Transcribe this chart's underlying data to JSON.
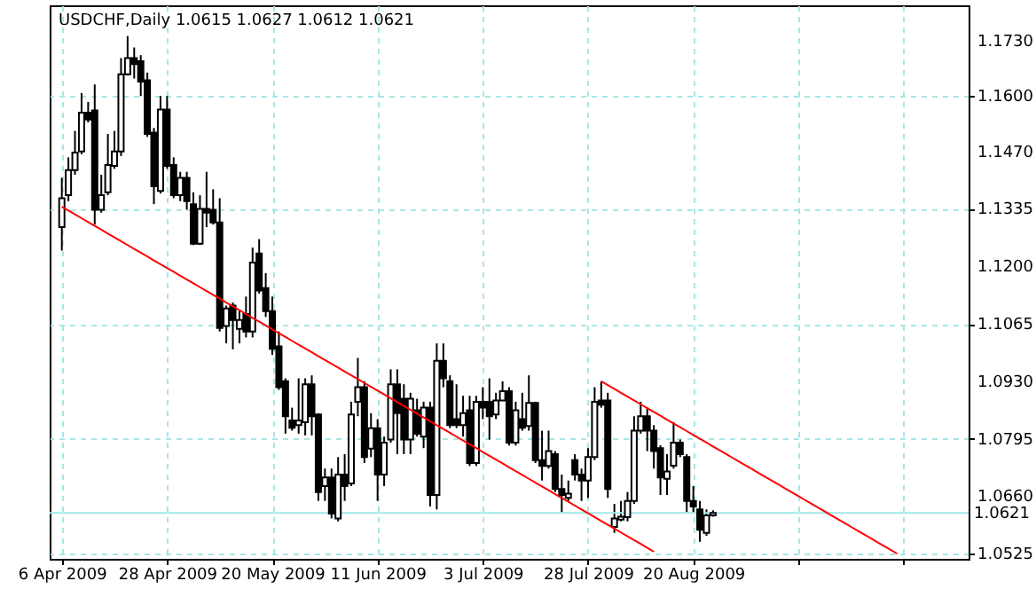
{
  "chart_data": {
    "type": "candlestick",
    "title": "USDCHF,Daily 1.0615 1.0627 1.0612 1.0621",
    "categories": [
      "6 Apr 2009",
      null,
      null,
      null,
      null,
      null,
      null,
      null,
      null,
      null,
      null,
      null,
      null,
      null,
      null,
      null,
      "28 Apr 2009",
      null,
      null,
      null,
      null,
      null,
      null,
      null,
      null,
      null,
      null,
      null,
      null,
      null,
      null,
      null,
      "20 May 2009",
      null,
      null,
      null,
      null,
      null,
      null,
      null,
      null,
      null,
      null,
      null,
      null,
      null,
      null,
      null,
      "11 Jun 2009",
      null,
      null,
      null,
      null,
      null,
      null,
      null,
      null,
      null,
      null,
      null,
      null,
      null,
      null,
      null,
      "3 Jul 2009",
      null,
      null,
      null,
      null,
      null,
      null,
      null,
      null,
      null,
      null,
      null,
      null,
      null,
      null,
      null,
      "28 Jul 2009",
      null,
      null,
      null,
      null,
      null,
      null,
      null,
      null,
      null,
      null,
      null,
      null,
      null,
      null,
      null,
      "20 Aug 2009",
      null,
      null,
      null,
      null,
      null,
      null,
      null,
      null,
      null,
      null,
      null,
      null,
      null,
      null,
      null,
      null,
      null,
      null,
      null,
      null,
      null,
      null,
      null,
      null,
      null,
      null,
      null,
      null,
      null,
      null,
      null,
      null,
      null,
      null,
      null,
      null,
      null,
      null,
      null,
      null
    ],
    "ohlc": [
      [
        1.1292,
        1.1408,
        1.1237,
        1.136
      ],
      [
        1.1367,
        1.1456,
        1.1353,
        1.1426
      ],
      [
        1.1426,
        1.1518,
        1.1415,
        1.1467
      ],
      [
        1.147,
        1.1607,
        1.1463,
        1.1561
      ],
      [
        1.1561,
        1.1586,
        1.1538,
        1.1545
      ],
      [
        1.1566,
        1.1627,
        1.1298,
        1.1333
      ],
      [
        1.1333,
        1.1415,
        1.1326,
        1.1367
      ],
      [
        1.1374,
        1.1511,
        1.1367,
        1.1438
      ],
      [
        1.1436,
        1.1518,
        1.1429,
        1.147
      ],
      [
        1.147,
        1.1689,
        1.1459,
        1.1651
      ],
      [
        1.1651,
        1.1741,
        1.1648,
        1.1689
      ],
      [
        1.1689,
        1.1714,
        1.1641,
        1.1675
      ],
      [
        1.1682,
        1.1696,
        1.16,
        1.1634
      ],
      [
        1.1637,
        1.1655,
        1.1504,
        1.1511
      ],
      [
        1.1514,
        1.1525,
        1.1346,
        1.1388
      ],
      [
        1.1377,
        1.16,
        1.1371,
        1.1568
      ],
      [
        1.1568,
        1.16,
        1.1429,
        1.1436
      ],
      [
        1.1438,
        1.1456,
        1.136,
        1.1367
      ],
      [
        1.1367,
        1.1422,
        1.1353,
        1.1408
      ],
      [
        1.1408,
        1.1422,
        1.1333,
        1.1353
      ],
      [
        1.1346,
        1.1374,
        1.125,
        1.1253
      ],
      [
        1.1253,
        1.1367,
        1.125,
        1.1335
      ],
      [
        1.1335,
        1.1422,
        1.1292,
        1.1326
      ],
      [
        1.1333,
        1.1381,
        1.1298,
        1.1303
      ],
      [
        1.1303,
        1.136,
        1.1047,
        1.1055
      ],
      [
        1.106,
        1.1108,
        1.1019,
        1.1101
      ],
      [
        1.1108,
        1.1115,
        1.1005,
        1.1074
      ],
      [
        1.1053,
        1.1095,
        1.1019,
        1.1074
      ],
      [
        1.1088,
        1.1129,
        1.1033,
        1.1047
      ],
      [
        1.1047,
        1.1244,
        1.1033,
        1.1209
      ],
      [
        1.123,
        1.1264,
        1.1136,
        1.1143
      ],
      [
        1.1149,
        1.1184,
        1.1081,
        1.1095
      ],
      [
        1.1095,
        1.1129,
        1.0992,
        1.1006
      ],
      [
        1.1012,
        1.1047,
        1.091,
        1.0916
      ],
      [
        1.093,
        1.0937,
        1.0807,
        1.0848
      ],
      [
        1.0838,
        1.0868,
        1.0814,
        1.0821
      ],
      [
        1.0827,
        1.0937,
        1.0807,
        1.0838
      ],
      [
        1.0834,
        1.0937,
        1.0803,
        1.0923
      ],
      [
        1.0923,
        1.0944,
        1.0803,
        1.0848
      ],
      [
        1.0852,
        1.0855,
        1.0649,
        1.067
      ],
      [
        1.0684,
        1.0725,
        1.0649,
        1.0704
      ],
      [
        1.0704,
        1.0725,
        1.0608,
        1.0619
      ],
      [
        1.0608,
        1.0752,
        1.0601,
        1.0711
      ],
      [
        1.0711,
        1.0759,
        1.0649,
        1.0684
      ],
      [
        1.069,
        1.0882,
        1.0684,
        1.0852
      ],
      [
        1.0882,
        1.0985,
        1.0848,
        1.0916
      ],
      [
        1.0916,
        1.093,
        1.0738,
        1.0752
      ],
      [
        1.0772,
        1.0855,
        1.0752,
        1.082
      ],
      [
        1.082,
        1.0841,
        1.0649,
        1.0711
      ],
      [
        1.0711,
        1.08,
        1.0684,
        1.0786
      ],
      [
        1.0793,
        1.0958,
        1.0786,
        1.0923
      ],
      [
        1.0923,
        1.0958,
        1.0759,
        1.0855
      ],
      [
        1.0889,
        1.0923,
        1.0759,
        1.0793
      ],
      [
        1.0793,
        1.0903,
        1.0759,
        1.0889
      ],
      [
        1.0862,
        1.0889,
        1.08,
        1.0807
      ],
      [
        1.08,
        1.0882,
        1.0773,
        1.0868
      ],
      [
        1.0868,
        1.0882,
        1.0636,
        1.0663
      ],
      [
        1.0663,
        1.1019,
        1.0629,
        1.0978
      ],
      [
        1.0978,
        1.1019,
        1.0916,
        1.0937
      ],
      [
        1.093,
        1.0944,
        1.082,
        1.0827
      ],
      [
        1.0841,
        1.0923,
        1.082,
        1.0827
      ],
      [
        1.0827,
        1.0896,
        1.08,
        1.0855
      ],
      [
        1.0862,
        1.0896,
        1.0731,
        1.0738
      ],
      [
        1.0738,
        1.0896,
        1.0731,
        1.0882
      ],
      [
        1.0882,
        1.0916,
        1.0841,
        1.0868
      ],
      [
        1.0882,
        1.0937,
        1.0793,
        1.0848
      ],
      [
        1.0852,
        1.0903,
        1.0841,
        1.0885
      ],
      [
        1.0885,
        1.093,
        1.0885,
        1.0907
      ],
      [
        1.0907,
        1.0916,
        1.0779,
        1.0786
      ],
      [
        1.0786,
        1.0882,
        1.0779,
        1.0862
      ],
      [
        1.0841,
        1.0903,
        1.0814,
        1.0821
      ],
      [
        1.0825,
        1.0944,
        1.0814,
        1.0879
      ],
      [
        1.0879,
        1.0882,
        1.0738,
        1.0745
      ],
      [
        1.0745,
        1.0814,
        1.0697,
        1.0731
      ],
      [
        1.0731,
        1.0814,
        1.0725,
        1.0766
      ],
      [
        1.0759,
        1.0766,
        1.067,
        1.0677
      ],
      [
        1.0677,
        1.0711,
        1.0622,
        1.0663
      ],
      [
        1.0656,
        1.0697,
        1.0649,
        1.0666
      ],
      [
        1.0745,
        1.0759,
        1.0697,
        1.0711
      ],
      [
        1.0711,
        1.0725,
        1.0649,
        1.0697
      ],
      [
        1.0697,
        1.0773,
        1.0656,
        1.0752
      ],
      [
        1.0752,
        1.0916,
        1.0745,
        1.0882
      ],
      [
        1.0885,
        1.093,
        1.0868,
        1.0875
      ],
      [
        1.0885,
        1.0903,
        1.0656,
        1.0677
      ],
      [
        1.0588,
        1.0642,
        1.0574,
        1.0608
      ],
      [
        1.0605,
        1.0649,
        1.0601,
        1.0612
      ],
      [
        1.0611,
        1.067,
        1.0601,
        1.0649
      ],
      [
        1.0649,
        1.0848,
        1.0642,
        1.0814
      ],
      [
        1.0814,
        1.0882,
        1.0807,
        1.0848
      ],
      [
        1.0848,
        1.0868,
        1.0766,
        1.0814
      ],
      [
        1.0814,
        1.0827,
        1.0725,
        1.0766
      ],
      [
        1.0773,
        1.078,
        1.0663,
        1.0704
      ],
      [
        1.0701,
        1.0759,
        1.0663,
        1.0718
      ],
      [
        1.0732,
        1.0834,
        1.0725,
        1.0786
      ],
      [
        1.0786,
        1.0793,
        1.0752,
        1.0759
      ],
      [
        1.0752,
        1.0759,
        1.0622,
        1.0649
      ],
      [
        1.0649,
        1.0684,
        1.0622,
        1.0636
      ],
      [
        1.0629,
        1.0649,
        1.0553,
        1.0581
      ],
      [
        1.0574,
        1.0629,
        1.0567,
        1.0615
      ],
      [
        1.0615,
        1.0627,
        1.0612,
        1.0621
      ],
      null,
      null,
      null,
      null,
      null,
      null,
      null,
      null,
      null,
      null,
      null,
      null,
      null,
      null,
      null,
      null,
      null,
      null,
      null,
      null,
      null,
      null,
      null,
      null,
      null,
      null,
      null,
      null,
      null,
      null,
      null,
      null,
      null,
      null,
      null,
      null,
      null
    ],
    "series": [
      {
        "type": "line",
        "color": "#ff0000",
        "values": [
          1.134,
          1.1331,
          1.1322,
          1.1313,
          1.1304,
          1.1295,
          1.1286,
          1.1277,
          1.1268,
          1.1259,
          1.125,
          1.1241,
          1.1232,
          1.1223,
          1.1214,
          1.1205,
          1.1196,
          1.1187,
          1.1178,
          1.1169,
          1.116,
          1.1151,
          1.1142,
          1.1133,
          1.1124,
          1.1115,
          1.1106,
          1.1097,
          1.1088,
          1.1079,
          1.107,
          1.1061,
          1.1052,
          1.1043,
          1.1034,
          1.1025,
          1.1016,
          1.1007,
          1.0998,
          1.0989,
          1.098,
          1.0971,
          1.0962,
          1.0953,
          1.0944,
          1.0935,
          1.0926,
          1.0917,
          1.0908,
          1.0899,
          1.089,
          1.0881,
          1.0872,
          1.0863,
          1.0854,
          1.0845,
          1.0836,
          1.0827,
          1.0818,
          1.0809,
          1.08,
          1.0791,
          1.0782,
          1.0773,
          1.0764,
          1.0755,
          1.0746,
          1.0737,
          1.0728,
          1.0719,
          1.071,
          1.0701,
          1.0692,
          1.0683,
          1.0674,
          1.0665,
          1.0656,
          1.0647,
          1.0638,
          1.0629,
          1.062,
          1.0611,
          1.0602,
          1.0593,
          1.0584,
          1.0575,
          1.0566,
          1.0557,
          1.0548,
          1.0539,
          1.053,
          null,
          null,
          null,
          null,
          null,
          null,
          null,
          null,
          null,
          null,
          null,
          null,
          null,
          null,
          null,
          null,
          null,
          null,
          null,
          null,
          null,
          null,
          null,
          null,
          null,
          null,
          null,
          null,
          null,
          null,
          null,
          null,
          null,
          null,
          null,
          null,
          null,
          null,
          null,
          null,
          null,
          null,
          null,
          null,
          null,
          null
        ]
      },
      {
        "type": "line",
        "color": "#ff0000",
        "values": [
          null,
          null,
          null,
          null,
          null,
          null,
          null,
          null,
          null,
          null,
          null,
          null,
          null,
          null,
          null,
          null,
          null,
          null,
          null,
          null,
          null,
          null,
          null,
          null,
          null,
          null,
          null,
          null,
          null,
          null,
          null,
          null,
          null,
          null,
          null,
          null,
          null,
          null,
          null,
          null,
          null,
          null,
          null,
          null,
          null,
          null,
          null,
          null,
          null,
          null,
          null,
          null,
          null,
          null,
          null,
          null,
          null,
          null,
          null,
          null,
          null,
          null,
          null,
          null,
          null,
          null,
          null,
          null,
          null,
          null,
          null,
          null,
          null,
          null,
          null,
          null,
          null,
          null,
          null,
          null,
          null,
          null,
          1.093,
          1.0921,
          1.0912,
          1.0903,
          1.0894,
          1.0885,
          1.0876,
          1.0867,
          1.0858,
          1.0849,
          1.084,
          1.0831,
          1.0822,
          1.0813,
          1.0804,
          1.0795,
          1.0786,
          1.0777,
          1.0768,
          1.0759,
          1.075,
          1.0741,
          1.0732,
          1.0723,
          1.0714,
          1.0705,
          1.0696,
          1.0687,
          1.0678,
          1.0669,
          1.066,
          1.0651,
          1.0642,
          1.0633,
          1.0624,
          1.0615,
          1.0606,
          1.0597,
          1.0588,
          1.0579,
          1.057,
          1.0561,
          1.0552,
          1.0543,
          1.0534,
          1.0525,
          null,
          null,
          null,
          null,
          null,
          null,
          null,
          null,
          null
        ]
      }
    ],
    "ylim": [
      1.0513,
      1.1813
    ],
    "yticks": [
      1.0525,
      {
        "value": 1.066,
        "label": "1.0660"
      },
      1.0795,
      {
        "value": 1.093,
        "label": "1.0930"
      },
      1.1065,
      {
        "value": 1.12,
        "label": "1.1200"
      },
      1.1335,
      {
        "value": 1.147,
        "label": "1.1470"
      },
      {
        "value": 1.16,
        "label": "1.1600"
      },
      {
        "value": 1.173,
        "label": "1.1730"
      }
    ],
    "grid": true,
    "ref_lines": [
      {
        "axis": "y",
        "value": 1.0621,
        "label": "1.0621",
        "color": "#a0e8e8"
      }
    ]
  }
}
